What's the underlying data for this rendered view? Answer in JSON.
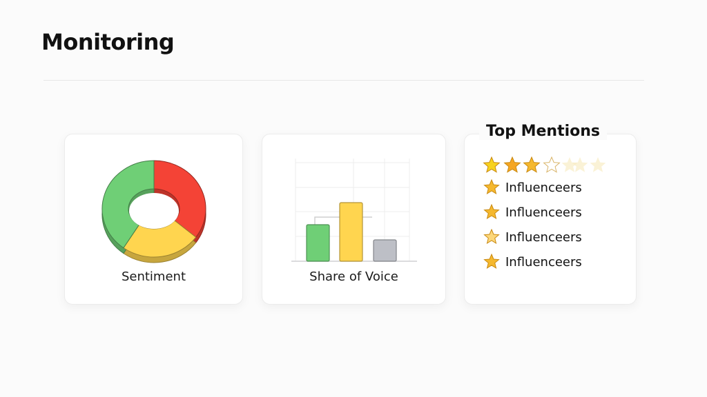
{
  "header": {
    "title": "Monitoring"
  },
  "cards": {
    "sentiment": {
      "label": "Sentiment"
    },
    "share_of_voice": {
      "label": "Share of Voice"
    },
    "top_mentions": {
      "title": "Top Mentions",
      "rating": {
        "filled": 3,
        "total": 7
      },
      "items": [
        {
          "label": "Influenceers",
          "icon": "star-icon"
        },
        {
          "label": "Influenceers",
          "icon": "star-icon"
        },
        {
          "label": "Influenceers",
          "icon": "star-icon"
        },
        {
          "label": "Influenceers",
          "icon": "star-icon"
        }
      ]
    }
  },
  "colors": {
    "positive": "#6fcf76",
    "negative": "#f44336",
    "neutral": "#ffd54f",
    "other": "#bdbfc6",
    "star": "#f5b82e"
  },
  "chart_data": [
    {
      "type": "pie",
      "variant": "donut",
      "title": "Sentiment",
      "slices": [
        {
          "color": "#f44336",
          "value": 35
        },
        {
          "color": "#ffd54f",
          "value": 25
        },
        {
          "color": "#6fcf76",
          "value": 40
        }
      ]
    },
    {
      "type": "bar",
      "title": "Share of Voice",
      "categories": [
        "",
        "",
        ""
      ],
      "values": [
        53,
        85,
        31
      ],
      "colors": [
        "#6fcf76",
        "#ffd54f",
        "#bdbfc6"
      ],
      "ylim": [
        0,
        143
      ],
      "grid": true
    }
  ]
}
